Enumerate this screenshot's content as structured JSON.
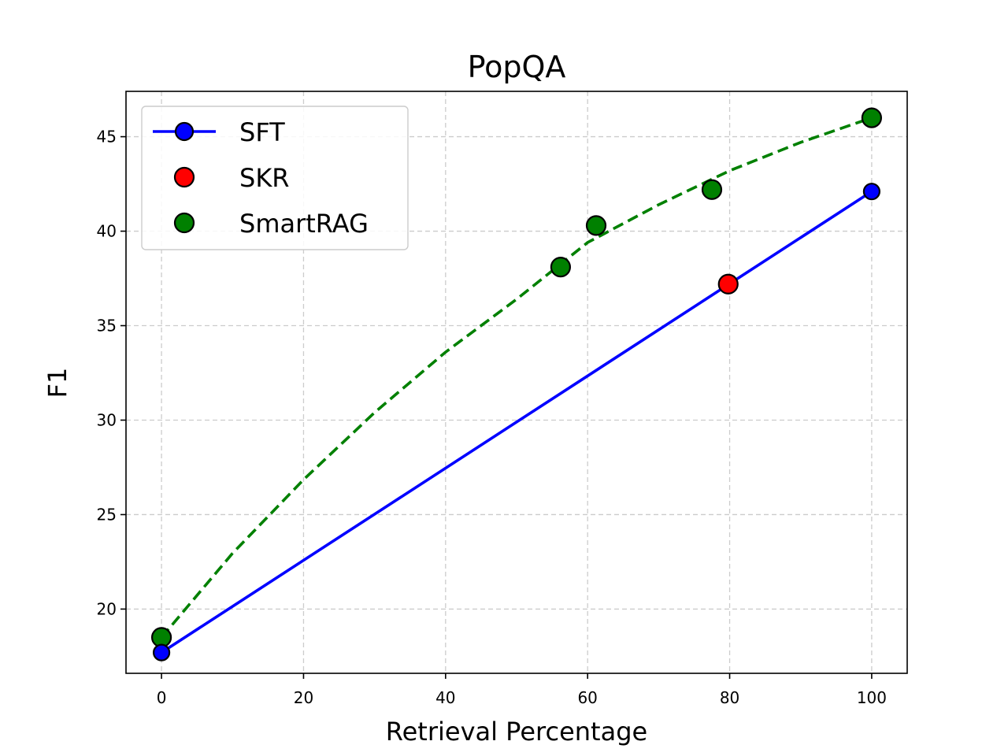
{
  "chart_data": {
    "type": "line",
    "title": "PopQA",
    "xlabel": "Retrieval Percentage",
    "ylabel": "F1",
    "xlim": [
      -5,
      105
    ],
    "ylim": [
      16.6,
      47.4
    ],
    "xticks": [
      0,
      20,
      40,
      60,
      80,
      100
    ],
    "yticks": [
      20,
      25,
      30,
      35,
      40,
      45
    ],
    "grid": true,
    "legend_position": "upper-left",
    "series": [
      {
        "name": "SFT",
        "kind": "line-markers",
        "color": "#0000ff",
        "style": "solid",
        "points": [
          {
            "x": 0,
            "y": 17.7
          },
          {
            "x": 100,
            "y": 42.1
          }
        ]
      },
      {
        "name": "SKR",
        "kind": "scatter",
        "color": "#ff0000",
        "points": [
          {
            "x": 79.8,
            "y": 37.2
          }
        ]
      },
      {
        "name": "SmartRAG",
        "kind": "scatter",
        "color": "#008000",
        "points": [
          {
            "x": 0,
            "y": 18.5
          },
          {
            "x": 56.2,
            "y": 38.1
          },
          {
            "x": 61.2,
            "y": 40.3
          },
          {
            "x": 77.5,
            "y": 42.2
          },
          {
            "x": 100,
            "y": 46.0
          }
        ]
      }
    ],
    "trend_lines": [
      {
        "name": "SmartRAG fit",
        "color": "#008000",
        "style": "dashed",
        "points": [
          {
            "x": 0,
            "y": 18.5
          },
          {
            "x": 10,
            "y": 22.95
          },
          {
            "x": 20,
            "y": 26.85
          },
          {
            "x": 30,
            "y": 30.4
          },
          {
            "x": 40,
            "y": 33.6
          },
          {
            "x": 50,
            "y": 36.4
          },
          {
            "x": 60,
            "y": 39.4
          },
          {
            "x": 70,
            "y": 41.4
          },
          {
            "x": 80,
            "y": 43.2
          },
          {
            "x": 90,
            "y": 44.7
          },
          {
            "x": 100,
            "y": 46.0
          }
        ]
      }
    ]
  }
}
